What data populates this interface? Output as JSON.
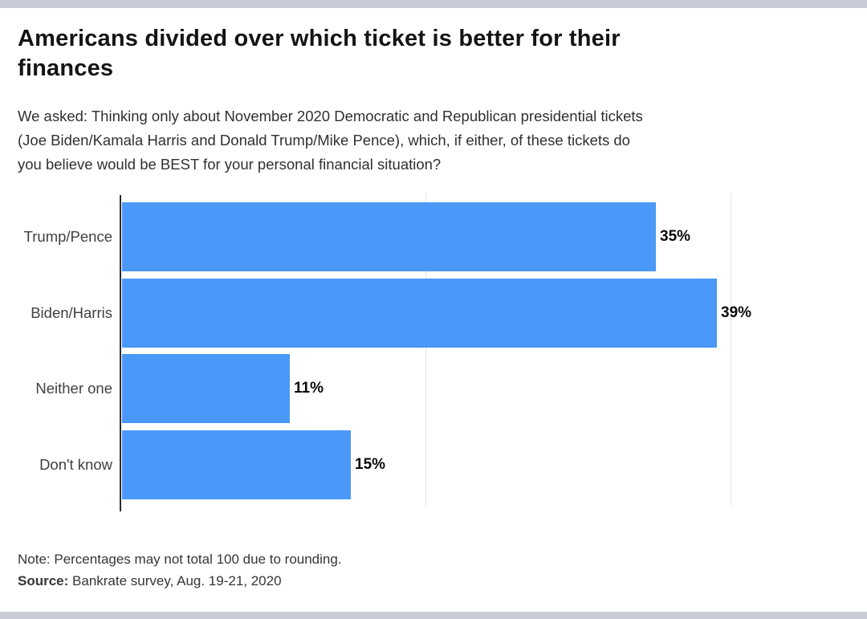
{
  "header": {
    "title_lines": [
      "Americans divided over which ticket is better for their",
      "finances"
    ],
    "question_lines": [
      "We asked: Thinking only about November 2020 Democratic and Republican presidential tickets",
      "(Joe Biden/Kamala Harris and Donald Trump/Mike Pence), which, if either, of these tickets do",
      "you believe would be BEST for your personal financial situation?"
    ]
  },
  "chart_data": {
    "type": "bar",
    "orientation": "horizontal",
    "title": "Americans divided over which ticket is better for their finances",
    "categories": [
      "Trump/Pence",
      "Biden/Harris",
      "Neither one",
      "Don't know"
    ],
    "values": [
      35,
      39,
      11,
      15
    ],
    "value_labels": [
      "35%",
      "39%",
      "11%",
      "15%"
    ],
    "xlabel": "",
    "ylabel": "",
    "xlim": [
      0,
      48
    ],
    "x_gridlines": [
      20,
      40
    ],
    "grid": true,
    "legend": false,
    "bar_color": "#4a98f7",
    "axis_color": "#2b2d30",
    "gridline_color": "#e2e3e6"
  },
  "footer": {
    "note": "Note: Percentages may not total 100 due to rounding.",
    "source_label": "Source:",
    "source_text": " Bankrate survey, Aug. 19-21, 2020"
  },
  "page": {
    "band_color": "#c9ccd6",
    "background_color": "#ffffff"
  }
}
